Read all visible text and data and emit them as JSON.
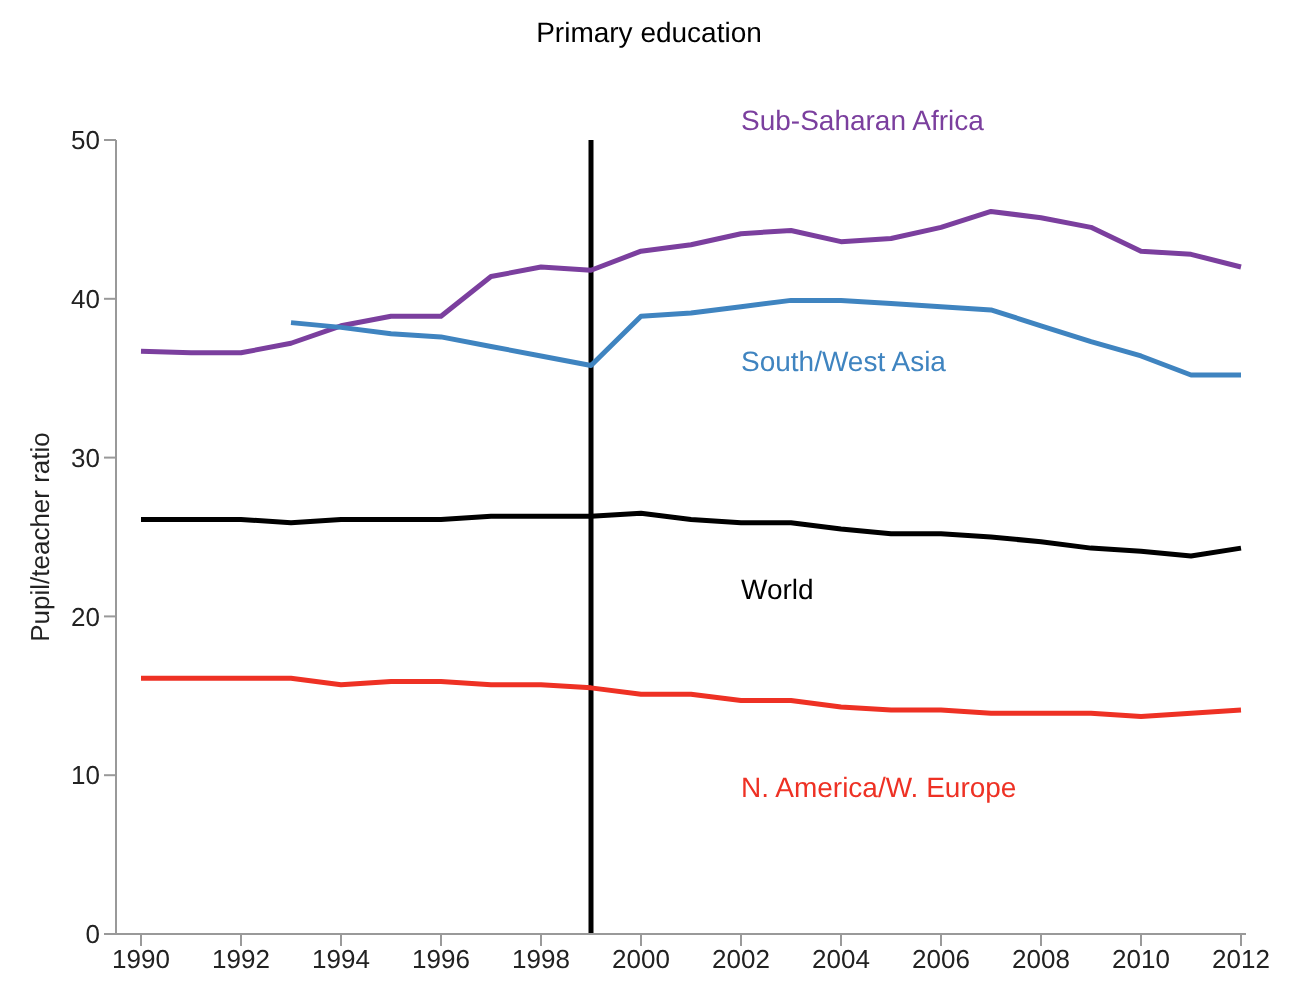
{
  "chart_data": {
    "type": "line",
    "title": "Primary education",
    "ylabel": "Pupil/teacher ratio",
    "x": [
      1990,
      1991,
      1992,
      1993,
      1994,
      1995,
      1996,
      1997,
      1998,
      1999,
      2000,
      2001,
      2002,
      2003,
      2004,
      2005,
      2006,
      2007,
      2008,
      2009,
      2010,
      2011,
      2012
    ],
    "series": [
      {
        "name": "Sub-Saharan Africa",
        "color": "#7b3f9e",
        "values": [
          36.7,
          36.6,
          36.6,
          37.2,
          38.3,
          38.9,
          38.9,
          41.4,
          42.0,
          41.8,
          43.0,
          43.4,
          44.1,
          44.3,
          43.6,
          43.8,
          44.5,
          45.5,
          45.1,
          44.5,
          43.0,
          42.8,
          42.0
        ]
      },
      {
        "name": "South/West Asia",
        "color": "#3f84c0",
        "values": [
          null,
          null,
          null,
          38.5,
          38.2,
          37.8,
          37.6,
          37.0,
          36.4,
          35.8,
          38.9,
          39.1,
          39.5,
          39.9,
          39.9,
          39.7,
          39.5,
          39.3,
          38.3,
          37.3,
          36.4,
          35.2,
          35.2
        ]
      },
      {
        "name": "World",
        "color": "#000000",
        "values": [
          26.1,
          26.1,
          26.1,
          25.9,
          26.1,
          26.1,
          26.1,
          26.3,
          26.3,
          26.3,
          26.5,
          26.1,
          25.9,
          25.9,
          25.5,
          25.2,
          25.2,
          25.0,
          24.7,
          24.3,
          24.1,
          23.8,
          24.3
        ]
      },
      {
        "name": "N. America/W. Europe",
        "color": "#ee3124",
        "values": [
          16.1,
          16.1,
          16.1,
          16.1,
          15.7,
          15.9,
          15.9,
          15.7,
          15.7,
          15.5,
          15.1,
          15.1,
          14.7,
          14.7,
          14.3,
          14.1,
          14.1,
          13.9,
          13.9,
          13.9,
          13.7,
          13.9,
          14.1
        ]
      }
    ],
    "xlim": [
      1989.5,
      2012.1
    ],
    "xticks": [
      1990,
      1992,
      1994,
      1996,
      1998,
      2000,
      2002,
      2004,
      2006,
      2008,
      2010,
      2012
    ],
    "ylim": [
      0,
      50
    ],
    "yticks": [
      0,
      10,
      20,
      30,
      40,
      50
    ],
    "ref_lines": [
      {
        "axis": "x",
        "value": 1999,
        "color": "#000000"
      }
    ],
    "grid": false,
    "legend": false,
    "marker": "none",
    "line_style": "solid"
  }
}
